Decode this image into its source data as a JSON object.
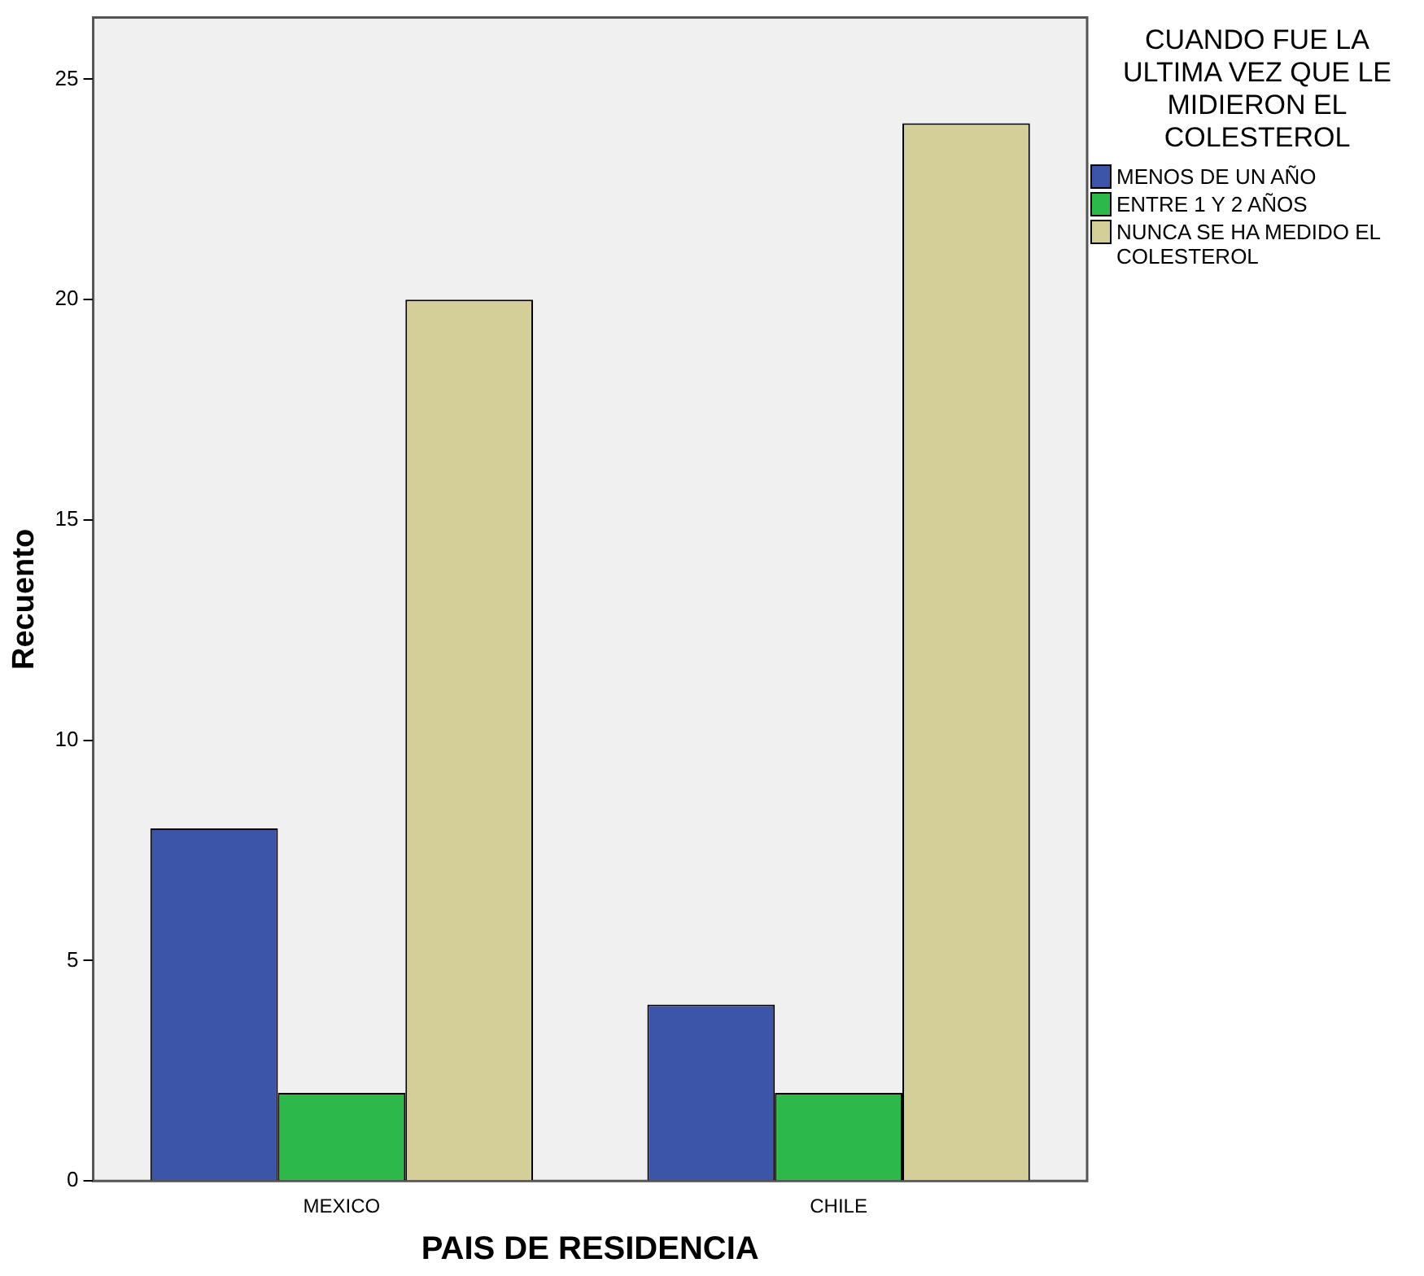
{
  "chart_data": {
    "type": "bar",
    "xlabel": "PAIS DE RESIDENCIA",
    "ylabel": "Recuento",
    "legend_title": "CUANDO FUE LA ULTIMA VEZ QUE LE MIDIERON EL COLESTEROL",
    "categories": [
      "MEXICO",
      "CHILE"
    ],
    "series": [
      {
        "name": "MENOS DE UN AÑO",
        "color": "#3d55a8",
        "values": [
          8,
          4
        ]
      },
      {
        "name": "ENTRE 1 Y 2 AÑOS",
        "color": "#2db84a",
        "values": [
          2,
          2
        ]
      },
      {
        "name": "NUNCA SE HA MEDIDO EL COLESTEROL",
        "color": "#d4cf98",
        "values": [
          20,
          24
        ]
      }
    ],
    "ylim": [
      0,
      26.4
    ],
    "yticks": [
      0,
      5,
      10,
      15,
      20,
      25
    ],
    "grid": false,
    "legend": "top right"
  }
}
